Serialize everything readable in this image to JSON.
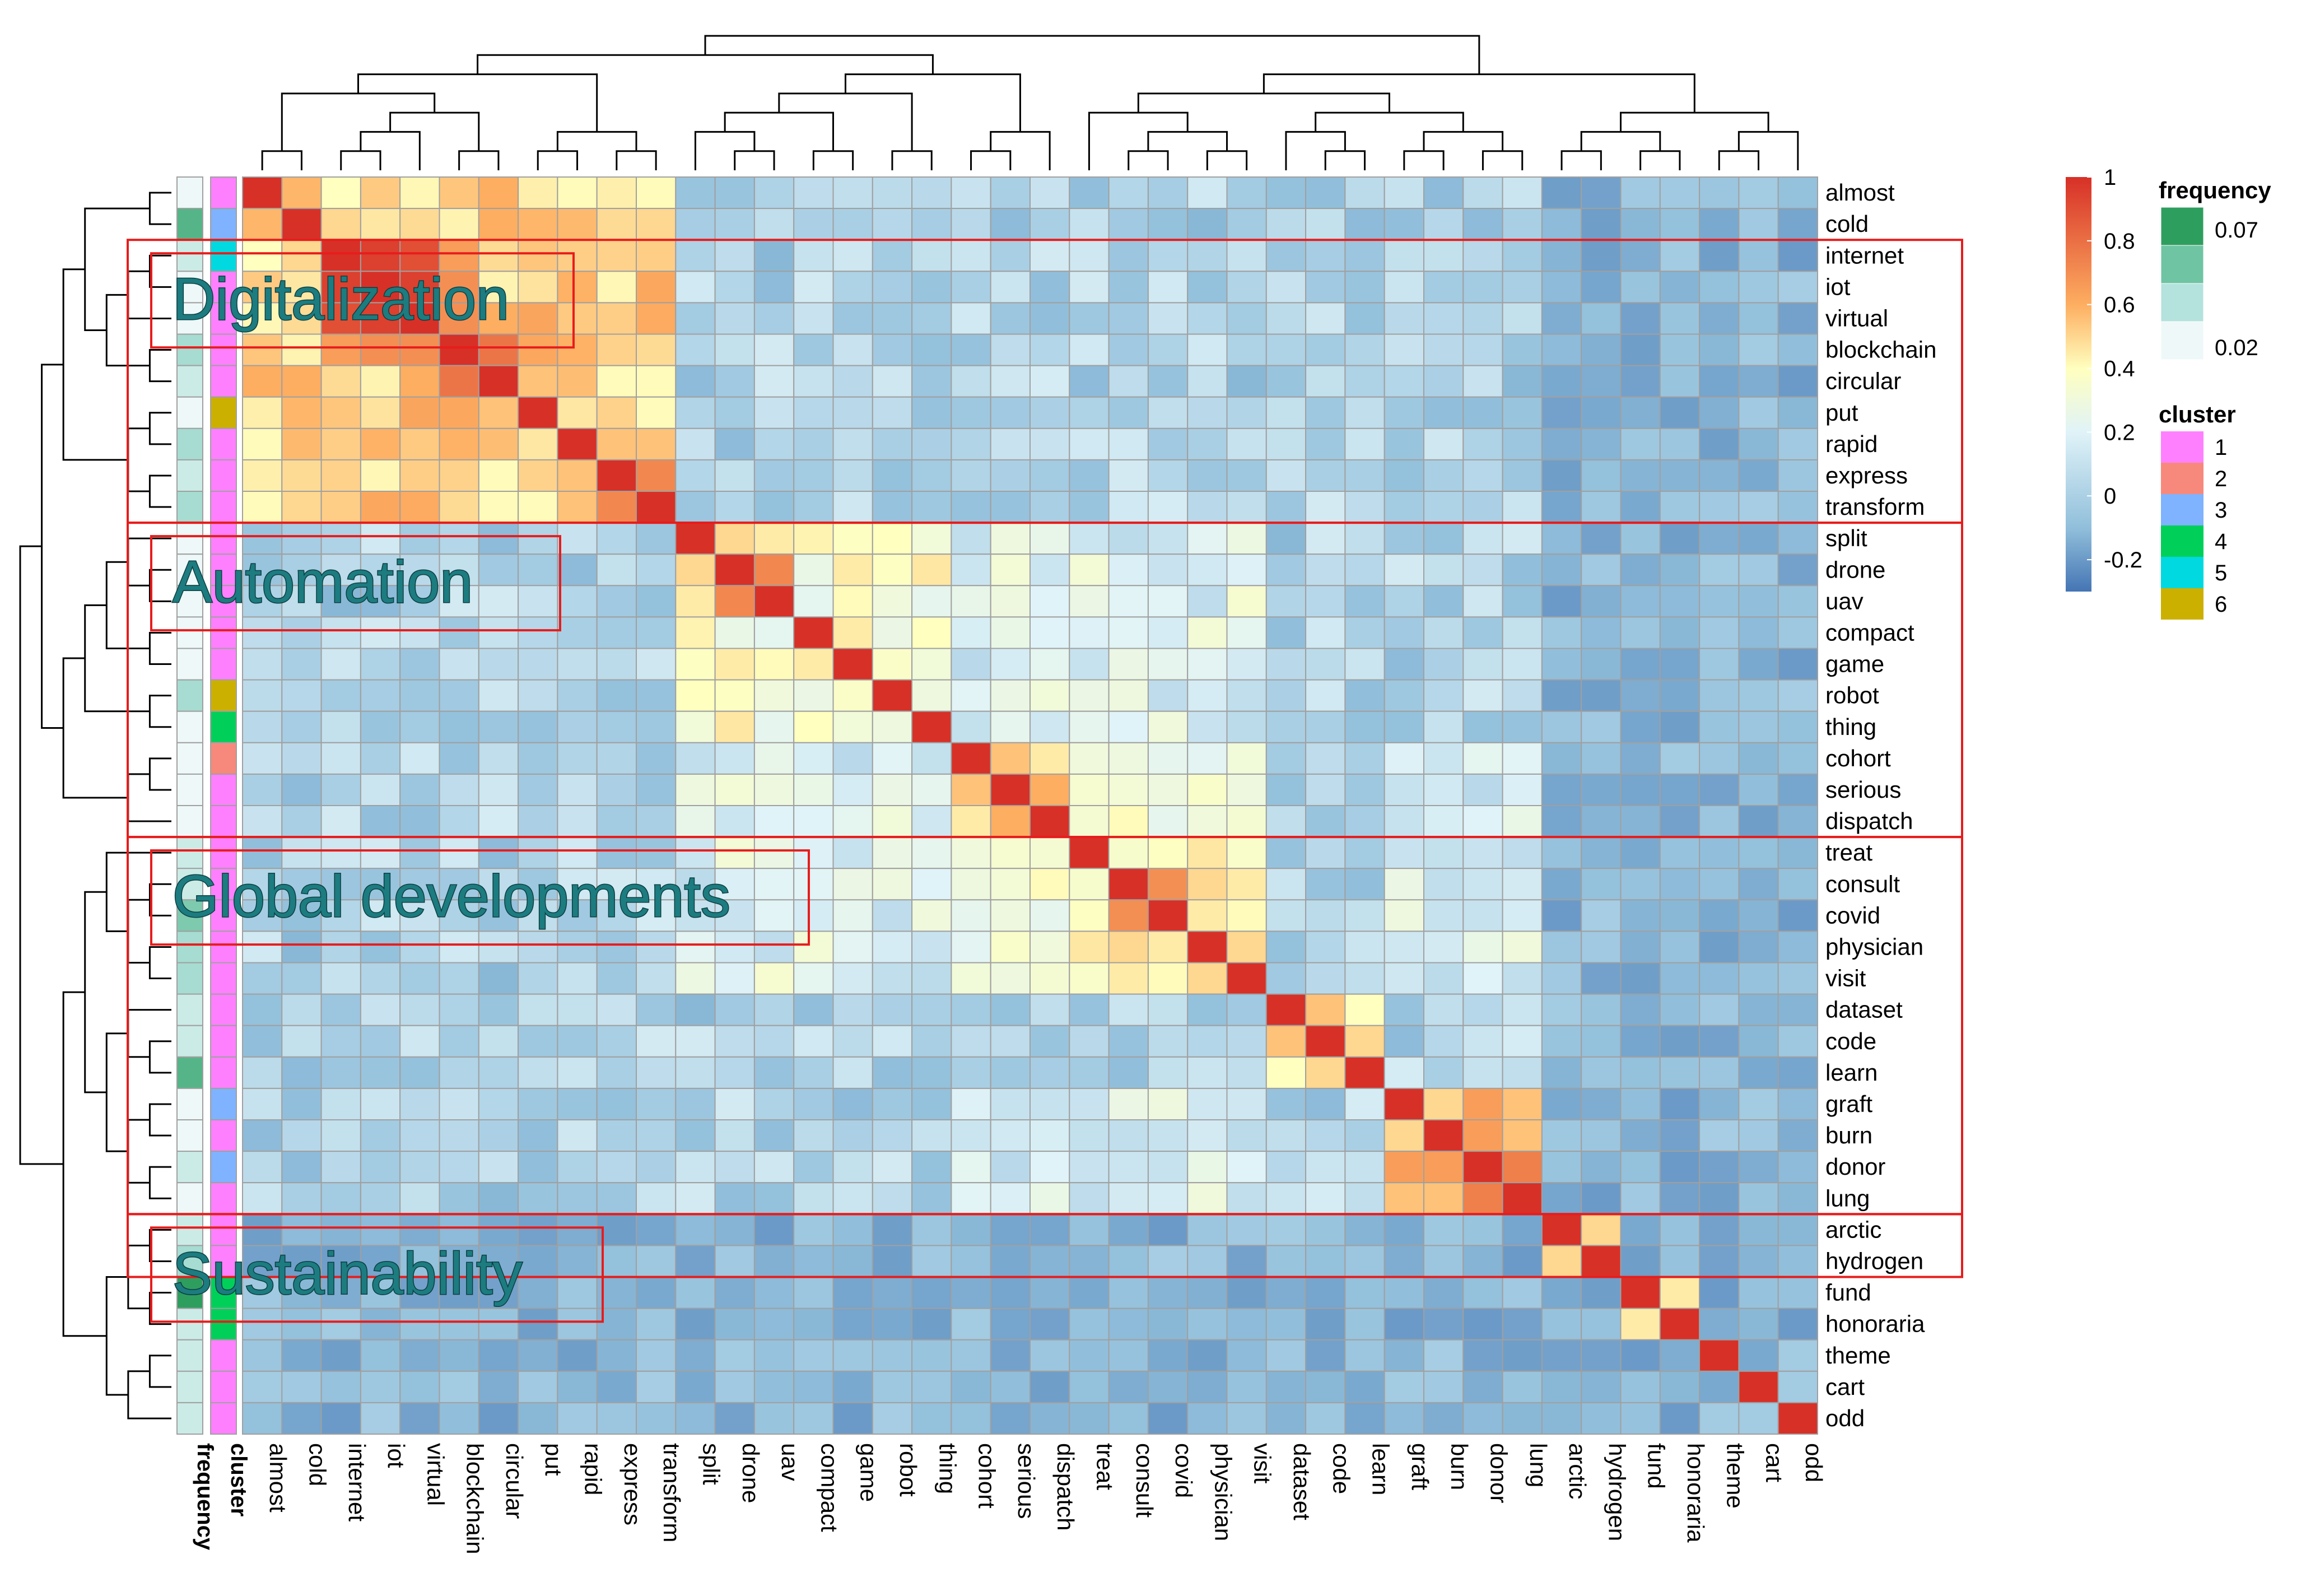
{
  "chart_data": {
    "type": "heatmap",
    "title": "",
    "terms": [
      "almost",
      "cold",
      "internet",
      "iot",
      "virtual",
      "blockchain",
      "circular",
      "put",
      "rapid",
      "express",
      "transform",
      "split",
      "drone",
      "uav",
      "compact",
      "game",
      "robot",
      "thing",
      "cohort",
      "serious",
      "dispatch",
      "treat",
      "consult",
      "covid",
      "physician",
      "visit",
      "dataset",
      "code",
      "learn",
      "graft",
      "burn",
      "donor",
      "lung",
      "arctic",
      "hydrogen",
      "fund",
      "honoraria",
      "theme",
      "cart",
      "odd"
    ],
    "annotation_columns": [
      "frequency",
      "cluster"
    ],
    "row_clusters": [
      1,
      3,
      5,
      1,
      1,
      1,
      1,
      6,
      1,
      1,
      1,
      1,
      1,
      1,
      1,
      1,
      6,
      4,
      2,
      1,
      1,
      1,
      1,
      1,
      1,
      1,
      1,
      1,
      1,
      3,
      1,
      3,
      1,
      1,
      1,
      4,
      4,
      1,
      1,
      1
    ],
    "row_frequency": [
      0.02,
      0.06,
      0.03,
      0.02,
      0.02,
      0.04,
      0.03,
      0.02,
      0.04,
      0.03,
      0.04,
      0.02,
      0.02,
      0.02,
      0.02,
      0.02,
      0.04,
      0.02,
      0.02,
      0.02,
      0.02,
      0.03,
      0.03,
      0.05,
      0.04,
      0.04,
      0.03,
      0.03,
      0.06,
      0.02,
      0.02,
      0.03,
      0.02,
      0.03,
      0.04,
      0.07,
      0.03,
      0.03,
      0.03,
      0.03
    ],
    "color_scale": {
      "breaks": [
        -0.3,
        -0.1,
        0.2,
        0.4,
        0.6,
        1.0
      ],
      "colors": [
        "#4575b4",
        "#91bfdb",
        "#e0f3f8",
        "#ffffbf",
        "#fdae61",
        "#d73027"
      ],
      "ticks": [
        "1",
        "0.8",
        "0.6",
        "0.4",
        "0.2",
        "0",
        "-0.2"
      ]
    },
    "frequency_legend": {
      "title": "frequency",
      "ticks": [
        "0.07",
        "0.02"
      ],
      "colors": [
        "#2e9e5f",
        "#6fc4a3",
        "#b4e2dc",
        "#eef8f8"
      ]
    },
    "cluster_legend": {
      "title": "cluster",
      "items": [
        {
          "label": "1",
          "color": "#ff80ff"
        },
        {
          "label": "2",
          "color": "#f7897c"
        },
        {
          "label": "3",
          "color": "#7fb2ff"
        },
        {
          "label": "4",
          "color": "#00d05a"
        },
        {
          "label": "5",
          "color": "#00d9e0"
        },
        {
          "label": "6",
          "color": "#ccb000"
        }
      ]
    },
    "groups": [
      {
        "label": "Digitalization",
        "terms": [
          "internet",
          "transform"
        ]
      },
      {
        "label": "Automation",
        "terms": [
          "split",
          "dispatch"
        ]
      },
      {
        "label": "Global developments",
        "terms": [
          "treat",
          "lung"
        ]
      },
      {
        "label": "Sustainability",
        "terms": [
          "arctic",
          "hydrogen"
        ]
      }
    ]
  }
}
